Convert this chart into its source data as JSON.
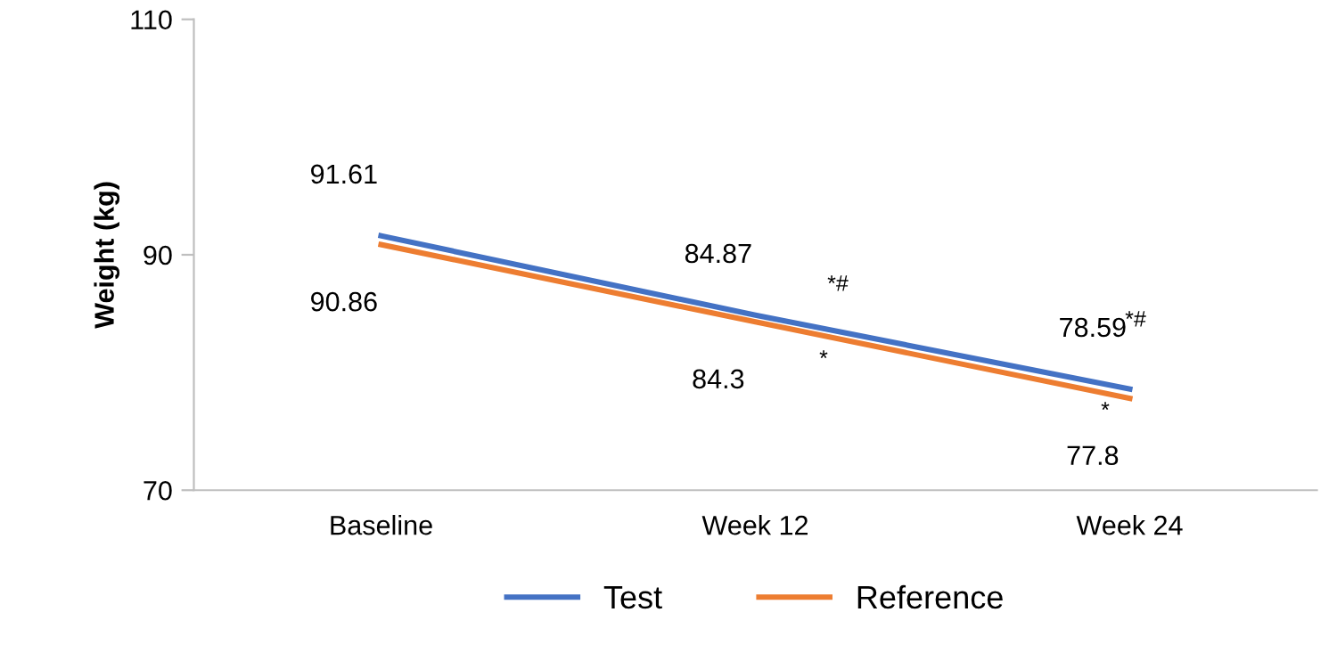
{
  "chart_data": {
    "type": "line",
    "ylabel": "Weight (kg)",
    "categories": [
      "Baseline",
      "Week 12",
      "Week 24"
    ],
    "series": [
      {
        "name": "Test",
        "color": "#4472c4",
        "values": [
          91.61,
          84.87,
          78.59
        ],
        "value_labels": [
          "91.61",
          "84.87",
          "78.59"
        ]
      },
      {
        "name": "Reference",
        "color": "#ed7d31",
        "values": [
          90.86,
          84.3,
          77.8
        ],
        "value_labels": [
          "90.86",
          "84.3",
          "77.8"
        ]
      }
    ],
    "annotations": [
      "*#",
      "*",
      "*#",
      "*"
    ],
    "ylim": [
      70,
      110
    ],
    "yticks": [
      70,
      90,
      110
    ],
    "grid": false,
    "legend": "bottom",
    "marker": "none",
    "line_style": "solid"
  }
}
